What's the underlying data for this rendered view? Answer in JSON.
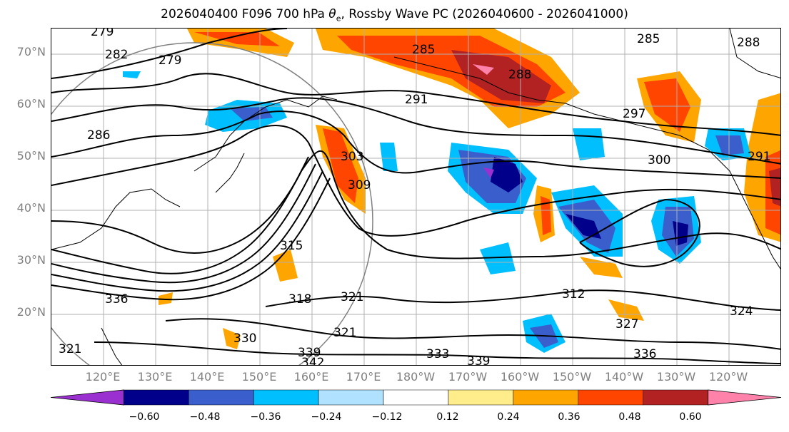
{
  "title": {
    "prefix": "2026040400 F096 700 hPa ",
    "theta_symbol": "θ",
    "theta_sub": "e",
    "suffix": ", Rossby Wave PC (2026040600 - 2026041000)"
  },
  "map": {
    "lat_labels": [
      "70°N",
      "60°N",
      "50°N",
      "40°N",
      "30°N",
      "20°N"
    ],
    "lon_labels": [
      "120°E",
      "130°E",
      "140°E",
      "150°E",
      "160°E",
      "170°E",
      "180°W",
      "170°W",
      "160°W",
      "150°W",
      "140°W",
      "130°W",
      "120°W"
    ],
    "contour_labels": [
      "279",
      "282",
      "279",
      "285",
      "285",
      "288",
      "286",
      "288",
      "291",
      "297",
      "300",
      "303",
      "309",
      "315",
      "318",
      "321",
      "312",
      "324",
      "327",
      "330",
      "336",
      "339",
      "342",
      "333",
      "339",
      "321",
      "321",
      "336",
      "291"
    ]
  },
  "colorbar": {
    "ticks": [
      "−0.60",
      "−0.48",
      "−0.36",
      "−0.24",
      "−0.12",
      "0.12",
      "0.24",
      "0.36",
      "0.48",
      "0.60"
    ],
    "colors": [
      "#9b30d0",
      "#00008b",
      "#3a5fcd",
      "#00bfff",
      "#b0e2ff",
      "#ffffff",
      "#ffec8b",
      "#ffa500",
      "#ff4500",
      "#b22222",
      "#ff82ab"
    ]
  }
}
